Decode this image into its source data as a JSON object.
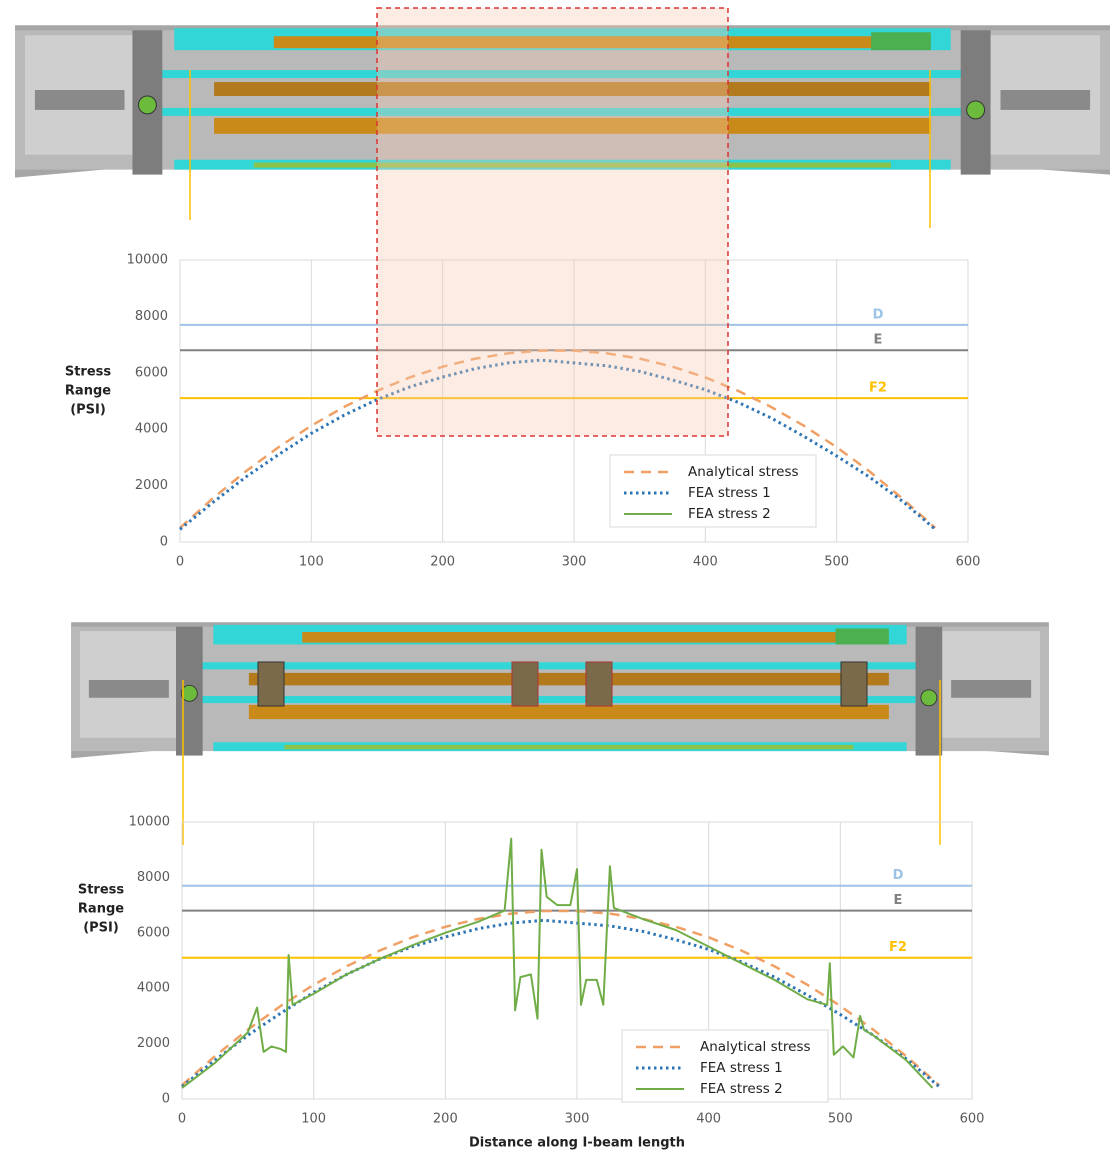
{
  "chart_data": [
    {
      "type": "line",
      "ylabel_lines": [
        "Stress",
        "Range",
        "(PSI)"
      ],
      "xlim": [
        0,
        600
      ],
      "xticks": [
        0,
        100,
        200,
        300,
        400,
        500,
        600
      ],
      "ylim": [
        0,
        10000
      ],
      "yticks": [
        0,
        2000,
        4000,
        6000,
        8000,
        10000
      ],
      "grid": "x",
      "x": [
        0,
        25,
        50,
        75,
        100,
        125,
        150,
        175,
        200,
        225,
        250,
        275,
        300,
        325,
        350,
        375,
        400,
        425,
        450,
        475,
        500,
        525,
        550,
        575
      ],
      "series": [
        {
          "name": "Analytical stress",
          "color": "#f0a064",
          "style": "dashed",
          "values": [
            500,
            1546,
            2503,
            3360,
            4123,
            4790,
            5357,
            5836,
            6217,
            6502,
            6693,
            6788,
            6788,
            6693,
            6502,
            6217,
            5836,
            5357,
            4790,
            4123,
            3360,
            2503,
            1546,
            500
          ]
        },
        {
          "name": "FEA stress 1",
          "color": "#2e75b6",
          "style": "dotted",
          "values": [
            450,
            1400,
            2300,
            3100,
            3850,
            4500,
            5050,
            5500,
            5850,
            6150,
            6350,
            6450,
            6350,
            6250,
            6050,
            5750,
            5400,
            4950,
            4400,
            3750,
            3050,
            2300,
            1450,
            450
          ]
        },
        {
          "name": "FEA stress 2",
          "color": "#70ad47",
          "style": "solid",
          "values": [
            null,
            null,
            null,
            null,
            null,
            null,
            null,
            null,
            null,
            null,
            null,
            null,
            null,
            null,
            null,
            null,
            null,
            null,
            null,
            null,
            null,
            null,
            null,
            null
          ]
        }
      ],
      "reference_lines": [
        {
          "label": "D",
          "value": 7700,
          "color": "#9dc3e6"
        },
        {
          "label": "E",
          "value": 6800,
          "color": "#808080"
        },
        {
          "label": "F2",
          "value": 5100,
          "color": "#ffc000"
        }
      ]
    },
    {
      "type": "line",
      "ylabel_lines": [
        "Stress",
        "Range",
        "(PSI)"
      ],
      "xlabel": "Distance along I-beam length",
      "xlim": [
        0,
        600
      ],
      "xticks": [
        0,
        100,
        200,
        300,
        400,
        500,
        600
      ],
      "ylim": [
        0,
        10000
      ],
      "yticks": [
        0,
        2000,
        4000,
        6000,
        8000,
        10000
      ],
      "grid": "x",
      "x": [
        0,
        25,
        50,
        75,
        100,
        125,
        150,
        175,
        200,
        225,
        250,
        275,
        300,
        325,
        350,
        375,
        400,
        425,
        450,
        475,
        500,
        525,
        550,
        575
      ],
      "series": [
        {
          "name": "Analytical stress",
          "color": "#f0a064",
          "style": "dashed",
          "values": [
            500,
            1546,
            2503,
            3360,
            4123,
            4790,
            5357,
            5836,
            6217,
            6502,
            6693,
            6788,
            6788,
            6693,
            6502,
            6217,
            5836,
            5357,
            4790,
            4123,
            3360,
            2503,
            1546,
            500
          ]
        },
        {
          "name": "FEA stress 1",
          "color": "#2e75b6",
          "style": "dotted",
          "values": [
            450,
            1400,
            2300,
            3100,
            3850,
            4500,
            5050,
            5500,
            5850,
            6150,
            6350,
            6450,
            6350,
            6250,
            6050,
            5750,
            5400,
            4950,
            4400,
            3750,
            3050,
            2300,
            1450,
            450
          ]
        },
        {
          "name": "FEA stress 2",
          "color": "#70ad47",
          "style": "solid",
          "x": [
            0,
            25,
            50,
            57,
            62,
            68,
            75,
            79,
            81,
            84,
            100,
            125,
            150,
            175,
            200,
            225,
            245,
            250,
            253,
            257,
            265,
            270,
            273,
            277,
            285,
            295,
            300,
            303,
            307,
            315,
            320,
            325,
            328,
            350,
            375,
            400,
            425,
            450,
            475,
            490,
            492,
            495,
            502,
            510,
            515,
            518,
            525,
            550,
            570
          ],
          "values": [
            400,
            1300,
            2400,
            3300,
            1700,
            1900,
            1800,
            1700,
            5200,
            3400,
            3800,
            4500,
            5050,
            5550,
            6000,
            6400,
            6800,
            9400,
            3200,
            4400,
            4500,
            2900,
            9000,
            7300,
            7000,
            7000,
            8300,
            3400,
            4300,
            4300,
            3400,
            8400,
            6900,
            6500,
            6100,
            5500,
            4900,
            4300,
            3600,
            3400,
            4900,
            1600,
            1900,
            1500,
            3000,
            2500,
            2300,
            1400,
            400
          ]
        }
      ],
      "reference_lines": [
        {
          "label": "D",
          "value": 7700,
          "color": "#9dc3e6"
        },
        {
          "label": "E",
          "value": 6800,
          "color": "#808080"
        },
        {
          "label": "F2",
          "value": 5100,
          "color": "#ffc000"
        }
      ]
    }
  ]
}
